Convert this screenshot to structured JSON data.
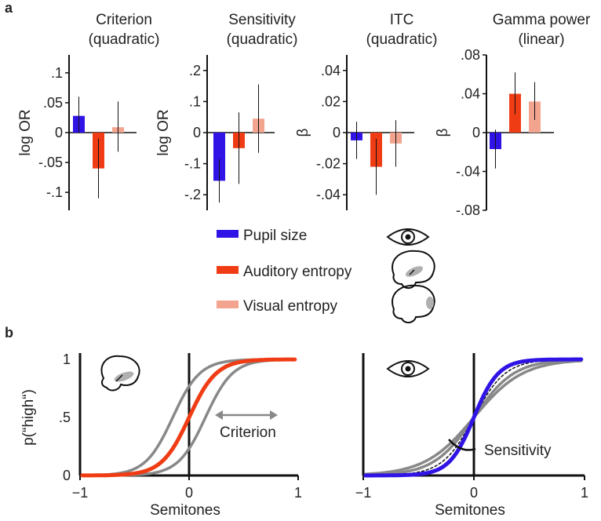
{
  "panel_labels": {
    "a": "a",
    "b": "b"
  },
  "colors": {
    "pupil": "#3014e6",
    "auditory": "#f03c14",
    "visual": "#f2a48f",
    "gray": "#888888",
    "black": "#111111"
  },
  "legend": [
    {
      "label": "Pupil size",
      "color": "#3014e6",
      "icon": "eye-icon"
    },
    {
      "label": "Auditory entropy",
      "color": "#f03c14",
      "icon": "brain-auditory-icon"
    },
    {
      "label": "Visual entropy",
      "color": "#f2a48f",
      "icon": "brain-visual-icon"
    }
  ],
  "chart_data": [
    {
      "type": "bar",
      "id": "criterion",
      "title": [
        "Criterion",
        "(quadratic)"
      ],
      "ylabel": "log OR",
      "ylim": [
        -0.13,
        0.13
      ],
      "yticks": [
        0.1,
        0.05,
        0,
        -0.05,
        -0.1
      ],
      "yticklabels": [
        ".1",
        ".05",
        "0",
        "-.05",
        "-.1"
      ],
      "categories": [
        "Pupil size",
        "Auditory entropy",
        "Visual entropy"
      ],
      "values": [
        0.028,
        -0.06,
        0.009
      ],
      "err_low": [
        0.0,
        -0.11,
        -0.032
      ],
      "err_high": [
        0.06,
        -0.01,
        0.052
      ]
    },
    {
      "type": "bar",
      "id": "sensitivity",
      "title": [
        "Sensitivity",
        "(quadratic)"
      ],
      "ylabel": "log OR",
      "ylim": [
        -0.25,
        0.25
      ],
      "yticks": [
        0.2,
        0.1,
        0,
        -0.1,
        -0.2
      ],
      "yticklabels": [
        ".2",
        ".1",
        "0",
        "-.1",
        "-.2"
      ],
      "categories": [
        "Pupil size",
        "Auditory entropy",
        "Visual entropy"
      ],
      "values": [
        -0.155,
        -0.05,
        0.045
      ],
      "err_low": [
        -0.225,
        -0.165,
        -0.065
      ],
      "err_high": [
        -0.085,
        0.065,
        0.155
      ]
    },
    {
      "type": "bar",
      "id": "itc",
      "title": [
        "ITC",
        "(quadratic)"
      ],
      "ylabel": "β",
      "ylim": [
        -0.05,
        0.05
      ],
      "yticks": [
        0.04,
        0.02,
        0,
        -0.02,
        -0.04
      ],
      "yticklabels": [
        ".04",
        ".02",
        "0",
        "-.02",
        "-.04"
      ],
      "categories": [
        "Pupil size",
        "Auditory entropy",
        "Visual entropy"
      ],
      "values": [
        -0.005,
        -0.022,
        -0.007
      ],
      "err_low": [
        -0.017,
        -0.04,
        -0.022
      ],
      "err_high": [
        0.007,
        -0.004,
        0.008
      ]
    },
    {
      "type": "bar",
      "id": "gamma",
      "title": [
        "Gamma power",
        "(linear)"
      ],
      "ylabel": "β",
      "ylim": [
        -0.08,
        0.08
      ],
      "yticks": [
        0.08,
        0.04,
        0,
        -0.04,
        -0.08
      ],
      "yticklabels": [
        ".08",
        ".04",
        "0",
        "-.04",
        "-.08"
      ],
      "categories": [
        "Pupil size",
        "Auditory entropy",
        "Visual entropy"
      ],
      "values": [
        -0.017,
        0.04,
        0.032
      ],
      "err_low": [
        -0.037,
        0.019,
        0.013
      ],
      "err_high": [
        0.003,
        0.062,
        0.052
      ]
    },
    {
      "type": "line",
      "id": "criterion-shift",
      "xlabel": "Semitones",
      "ylabel": "p(“high“)",
      "xlim": [
        -1.0,
        1.0
      ],
      "ylim": [
        0,
        1
      ],
      "xticks": [
        -1,
        0,
        1
      ],
      "xticklabels": [
        "−1",
        "0",
        "1"
      ],
      "yticks": [
        0,
        0.5,
        1
      ],
      "yticklabels": [
        "0",
        ".5",
        "1"
      ],
      "annotation": "Criterion",
      "series": [
        {
          "name": "gray-left",
          "color": "#888888",
          "mu": -0.15,
          "slope": 8.0
        },
        {
          "name": "gray-right",
          "color": "#888888",
          "mu": 0.15,
          "slope": 8.0
        },
        {
          "name": "auditory",
          "color": "#f03c14",
          "mu": 0.0,
          "slope": 8.0
        }
      ]
    },
    {
      "type": "line",
      "id": "sensitivity-change",
      "xlabel": "Semitones",
      "ylabel": "",
      "xlim": [
        -1.0,
        1.0
      ],
      "ylim": [
        0,
        1
      ],
      "xticks": [
        -1,
        0,
        1
      ],
      "xticklabels": [
        "−1",
        "0",
        "1"
      ],
      "yticks": [],
      "yticklabels": [],
      "annotation": "Sensitivity",
      "series": [
        {
          "name": "gray-shallow",
          "color": "#888888",
          "mu": 0.0,
          "slope": 4.5
        },
        {
          "name": "gray-mid",
          "color": "#888888",
          "mu": 0.0,
          "slope": 5.5
        },
        {
          "name": "dotted",
          "color": "#111111",
          "mu": 0.0,
          "slope": 7.0,
          "dash": true
        },
        {
          "name": "pupil",
          "color": "#3014e6",
          "mu": 0.0,
          "slope": 9.0
        }
      ]
    }
  ]
}
